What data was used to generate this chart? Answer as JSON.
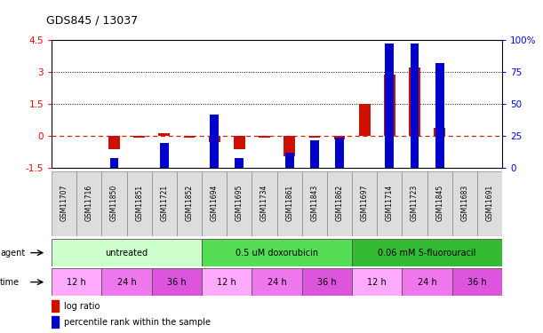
{
  "title": "GDS845 / 13037",
  "samples": [
    "GSM11707",
    "GSM11716",
    "GSM11850",
    "GSM11851",
    "GSM11721",
    "GSM11852",
    "GSM11694",
    "GSM11695",
    "GSM11734",
    "GSM11861",
    "GSM11843",
    "GSM11862",
    "GSM11697",
    "GSM11714",
    "GSM11723",
    "GSM11845",
    "GSM11683",
    "GSM11691"
  ],
  "log_ratio": [
    0.0,
    0.0,
    -0.6,
    -0.08,
    0.12,
    -0.08,
    -0.28,
    -0.6,
    -0.08,
    -0.95,
    -0.08,
    -0.15,
    1.5,
    2.9,
    3.2,
    0.38,
    0.0,
    0.0
  ],
  "percentile_rank": [
    null,
    null,
    8,
    null,
    20,
    null,
    42,
    8,
    null,
    12,
    22,
    24,
    null,
    97,
    97,
    82,
    null,
    null
  ],
  "agents": [
    {
      "label": "untreated",
      "start": 0,
      "end": 6,
      "color": "#ccffcc"
    },
    {
      "label": "0.5 uM doxorubicin",
      "start": 6,
      "end": 12,
      "color": "#55dd55"
    },
    {
      "label": "0.06 mM 5-fluorouracil",
      "start": 12,
      "end": 18,
      "color": "#33bb33"
    }
  ],
  "time_groups": [
    {
      "label": "12 h",
      "start": 0,
      "end": 2,
      "color": "#ffaaff"
    },
    {
      "label": "24 h",
      "start": 2,
      "end": 4,
      "color": "#ee77ee"
    },
    {
      "label": "36 h",
      "start": 4,
      "end": 6,
      "color": "#dd55dd"
    },
    {
      "label": "12 h",
      "start": 6,
      "end": 8,
      "color": "#ffaaff"
    },
    {
      "label": "24 h",
      "start": 8,
      "end": 10,
      "color": "#ee77ee"
    },
    {
      "label": "36 h",
      "start": 10,
      "end": 12,
      "color": "#dd55dd"
    },
    {
      "label": "12 h",
      "start": 12,
      "end": 14,
      "color": "#ffaaff"
    },
    {
      "label": "24 h",
      "start": 14,
      "end": 16,
      "color": "#ee77ee"
    },
    {
      "label": "36 h",
      "start": 16,
      "end": 18,
      "color": "#dd55dd"
    }
  ],
  "ylim_left": [
    -1.5,
    4.5
  ],
  "ylim_right": [
    0,
    100
  ],
  "yticks_left": [
    -1.5,
    0,
    1.5,
    3.0,
    4.5
  ],
  "yticks_right": [
    0,
    25,
    50,
    75,
    100
  ],
  "hlines_dotted": [
    1.5,
    3.0
  ],
  "bar_color": "#cc1100",
  "rank_color": "#0000cc",
  "zero_line_color": "#cc2200",
  "background_color": "#ffffff"
}
